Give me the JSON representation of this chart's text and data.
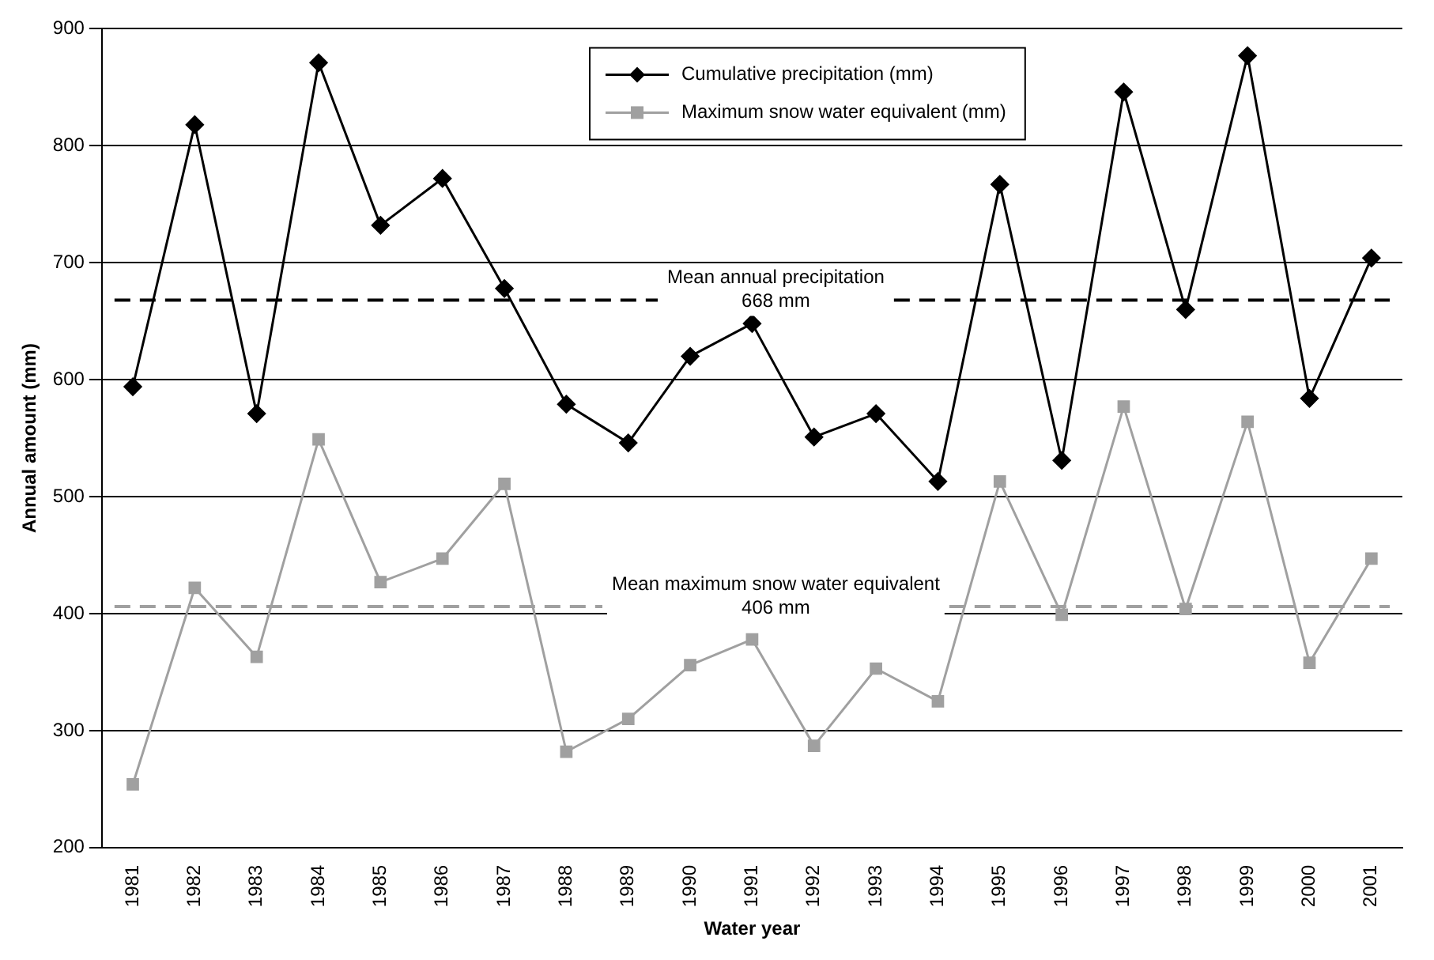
{
  "chart_data": {
    "type": "line",
    "xlabel": "Water year",
    "ylabel": "Annual amount (mm)",
    "categories": [
      "1981",
      "1982",
      "1983",
      "1984",
      "1985",
      "1986",
      "1987",
      "1988",
      "1989",
      "1990",
      "1991",
      "1992",
      "1993",
      "1994",
      "1995",
      "1996",
      "1997",
      "1998",
      "1999",
      "2000",
      "2001"
    ],
    "series": [
      {
        "name": "Cumulative precipitation (mm)",
        "color": "#000000",
        "marker": "diamond",
        "values": [
          594,
          818,
          571,
          871,
          732,
          772,
          678,
          579,
          546,
          620,
          648,
          551,
          571,
          513,
          767,
          531,
          846,
          660,
          877,
          584,
          704
        ]
      },
      {
        "name": "Maximum snow water equivalent (mm)",
        "color": "#a0a0a0",
        "marker": "square",
        "values": [
          254,
          422,
          363,
          549,
          427,
          447,
          511,
          282,
          310,
          356,
          378,
          287,
          353,
          325,
          513,
          399,
          577,
          404,
          564,
          358,
          447
        ]
      }
    ],
    "ylim": [
      200,
      900
    ],
    "yticks": [
      200,
      300,
      400,
      500,
      600,
      700,
      800,
      900
    ],
    "grid": "y",
    "legend": "top",
    "ref_lines": [
      {
        "axis": "y",
        "value": 668,
        "label": "Mean annual precipitation\n668 mm",
        "color": "#000000",
        "line_style": "dashed"
      },
      {
        "axis": "y",
        "value": 406,
        "label": "Mean maximum snow water equivalent\n406 mm",
        "color": "#a0a0a0",
        "line_style": "dashed"
      }
    ]
  }
}
